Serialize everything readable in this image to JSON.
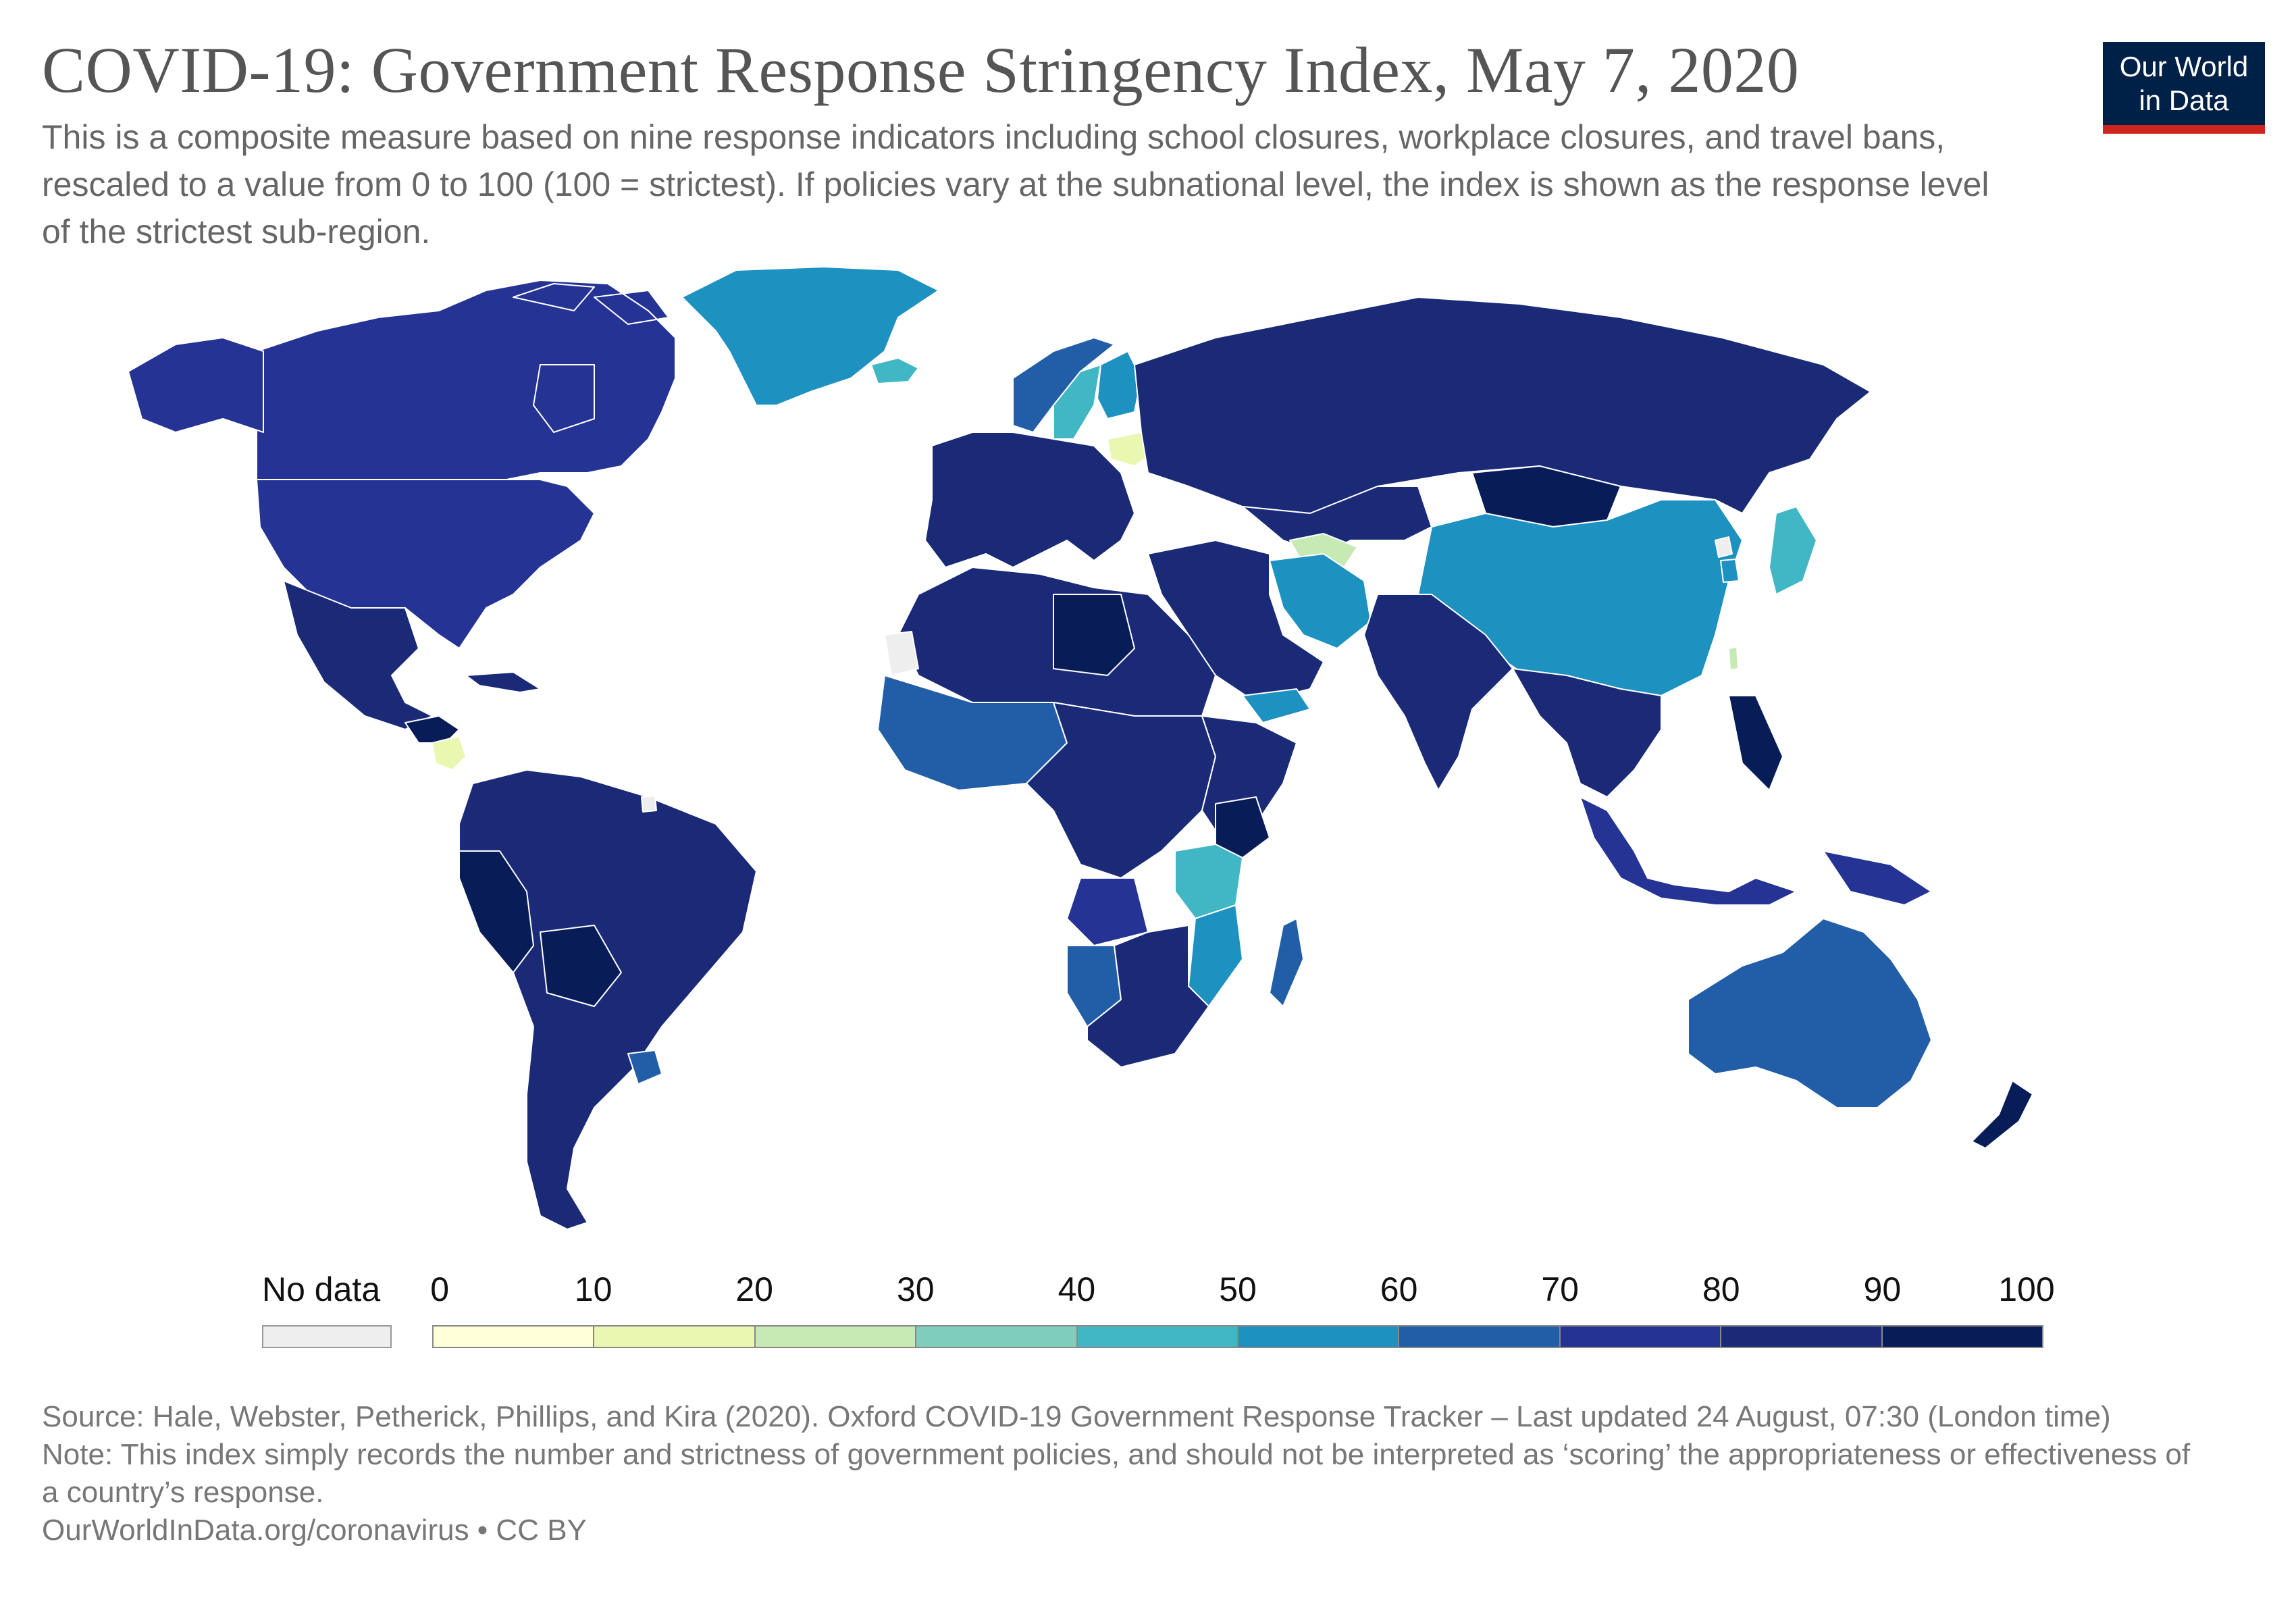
{
  "header": {
    "title": "COVID-19: Government Response Stringency Index, May 7, 2020",
    "subtitle": "This is a composite measure based on nine response indicators including school closures, workplace closures, and travel bans, rescaled to a value from 0 to 100 (100 = strictest). If policies vary at the subnational level, the index is shown as the response level of the strictest sub-region."
  },
  "logo": {
    "line1": "Our World",
    "line2": "in Data",
    "bg_color": "#002147",
    "accent_color": "#ce261e"
  },
  "legend": {
    "no_data_label": "No data",
    "no_data_color": "#eeeeee",
    "ticks": [
      "0",
      "10",
      "20",
      "30",
      "40",
      "50",
      "60",
      "70",
      "80",
      "90",
      "100"
    ],
    "bins": [
      {
        "min": 0,
        "max": 10,
        "color": "#ffffd9"
      },
      {
        "min": 10,
        "max": 20,
        "color": "#eaf7b1"
      },
      {
        "min": 20,
        "max": 30,
        "color": "#c7e9b4"
      },
      {
        "min": 30,
        "max": 40,
        "color": "#7fcdbb"
      },
      {
        "min": 40,
        "max": 50,
        "color": "#41b6c4"
      },
      {
        "min": 50,
        "max": 60,
        "color": "#1d91c0"
      },
      {
        "min": 60,
        "max": 70,
        "color": "#225ea8"
      },
      {
        "min": 70,
        "max": 80,
        "color": "#253494"
      },
      {
        "min": 80,
        "max": 90,
        "color": "#1b2a77"
      },
      {
        "min": 90,
        "max": 100,
        "color": "#081d58"
      }
    ]
  },
  "footer": {
    "source": "Source: Hale, Webster, Petherick, Phillips, and Kira (2020). Oxford COVID-19 Government Response Tracker – Last updated 24 August, 07:30 (London time)",
    "note": "Note: This index simply records the number and strictness of government policies, and should not be interpreted as ‘scoring’ the appropriateness or effectiveness of a country’s response.",
    "url": "OurWorldInData.org/coronavirus • CC BY"
  },
  "map_data": {
    "metric": "Government Response Stringency Index",
    "date": "May 7, 2020",
    "regions": [
      {
        "name": "Greenland",
        "value": 55
      },
      {
        "name": "Iceland",
        "value": 45
      },
      {
        "name": "Canada",
        "value": 73
      },
      {
        "name": "United States",
        "value": 73
      },
      {
        "name": "Mexico",
        "value": 82
      },
      {
        "name": "Nicaragua",
        "value": 12
      },
      {
        "name": "Honduras",
        "value": 92
      },
      {
        "name": "Cuba",
        "value": 85
      },
      {
        "name": "South America",
        "value": 85
      },
      {
        "name": "Peru",
        "value": 95
      },
      {
        "name": "Bolivia",
        "value": 95
      },
      {
        "name": "Uruguay",
        "value": 62
      },
      {
        "name": "Western Europe",
        "value": 82
      },
      {
        "name": "Sweden",
        "value": 42
      },
      {
        "name": "Finland",
        "value": 55
      },
      {
        "name": "Norway",
        "value": 68
      },
      {
        "name": "Belarus",
        "value": 12
      },
      {
        "name": "Russia",
        "value": 85
      },
      {
        "name": "Mongolia",
        "value": 92
      },
      {
        "name": "Turkmenistan",
        "value": 22
      },
      {
        "name": "Central Asia",
        "value": 82
      },
      {
        "name": "China",
        "value": 58
      },
      {
        "name": "Japan",
        "value": 45
      },
      {
        "name": "South Korea",
        "value": 55
      },
      {
        "name": "Taiwan",
        "value": 25
      },
      {
        "name": "Iran",
        "value": 55
      },
      {
        "name": "Middle East",
        "value": 82
      },
      {
        "name": "Yemen",
        "value": 52
      },
      {
        "name": "India",
        "value": 85
      },
      {
        "name": "Southeast Asia",
        "value": 82
      },
      {
        "name": "Philippines",
        "value": 95
      },
      {
        "name": "Indonesia",
        "value": 78
      },
      {
        "name": "Papua New Guinea",
        "value": 72
      },
      {
        "name": "Australia",
        "value": 65
      },
      {
        "name": "New Zealand",
        "value": 92
      },
      {
        "name": "Libya",
        "value": 95
      },
      {
        "name": "North Africa",
        "value": 82
      },
      {
        "name": "West Africa",
        "value": 66
      },
      {
        "name": "Central Africa",
        "value": 82
      },
      {
        "name": "East Africa",
        "value": 85
      },
      {
        "name": "Kenya",
        "value": 92
      },
      {
        "name": "Tanzania",
        "value": 45
      },
      {
        "name": "Mozambique",
        "value": 55
      },
      {
        "name": "Madagascar",
        "value": 65
      },
      {
        "name": "Southern Africa",
        "value": 88
      },
      {
        "name": "Angola",
        "value": 78
      },
      {
        "name": "Namibia",
        "value": 68
      },
      {
        "name": "Western Sahara",
        "value": null
      },
      {
        "name": "French Guiana",
        "value": null
      },
      {
        "name": "North Korea",
        "value": null
      }
    ]
  }
}
